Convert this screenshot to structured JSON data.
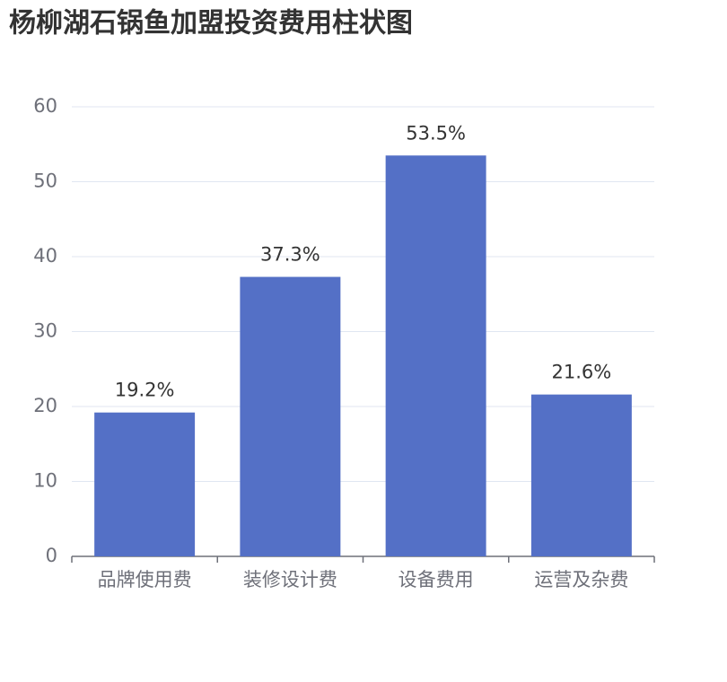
{
  "chart_data": {
    "type": "bar",
    "title": "杨柳湖石锅鱼加盟投资费用柱状图",
    "categories": [
      "品牌使用费",
      "装修设计费",
      "设备费用",
      "运营及杂费"
    ],
    "values": [
      19.2,
      37.3,
      53.5,
      21.6
    ],
    "value_labels": [
      "19.2%",
      "37.3%",
      "53.5%",
      "21.6%"
    ],
    "color": "#5470c6",
    "ylim": [
      0,
      60
    ],
    "yticks": [
      0,
      10,
      20,
      30,
      40,
      50,
      60
    ],
    "grid": true
  }
}
